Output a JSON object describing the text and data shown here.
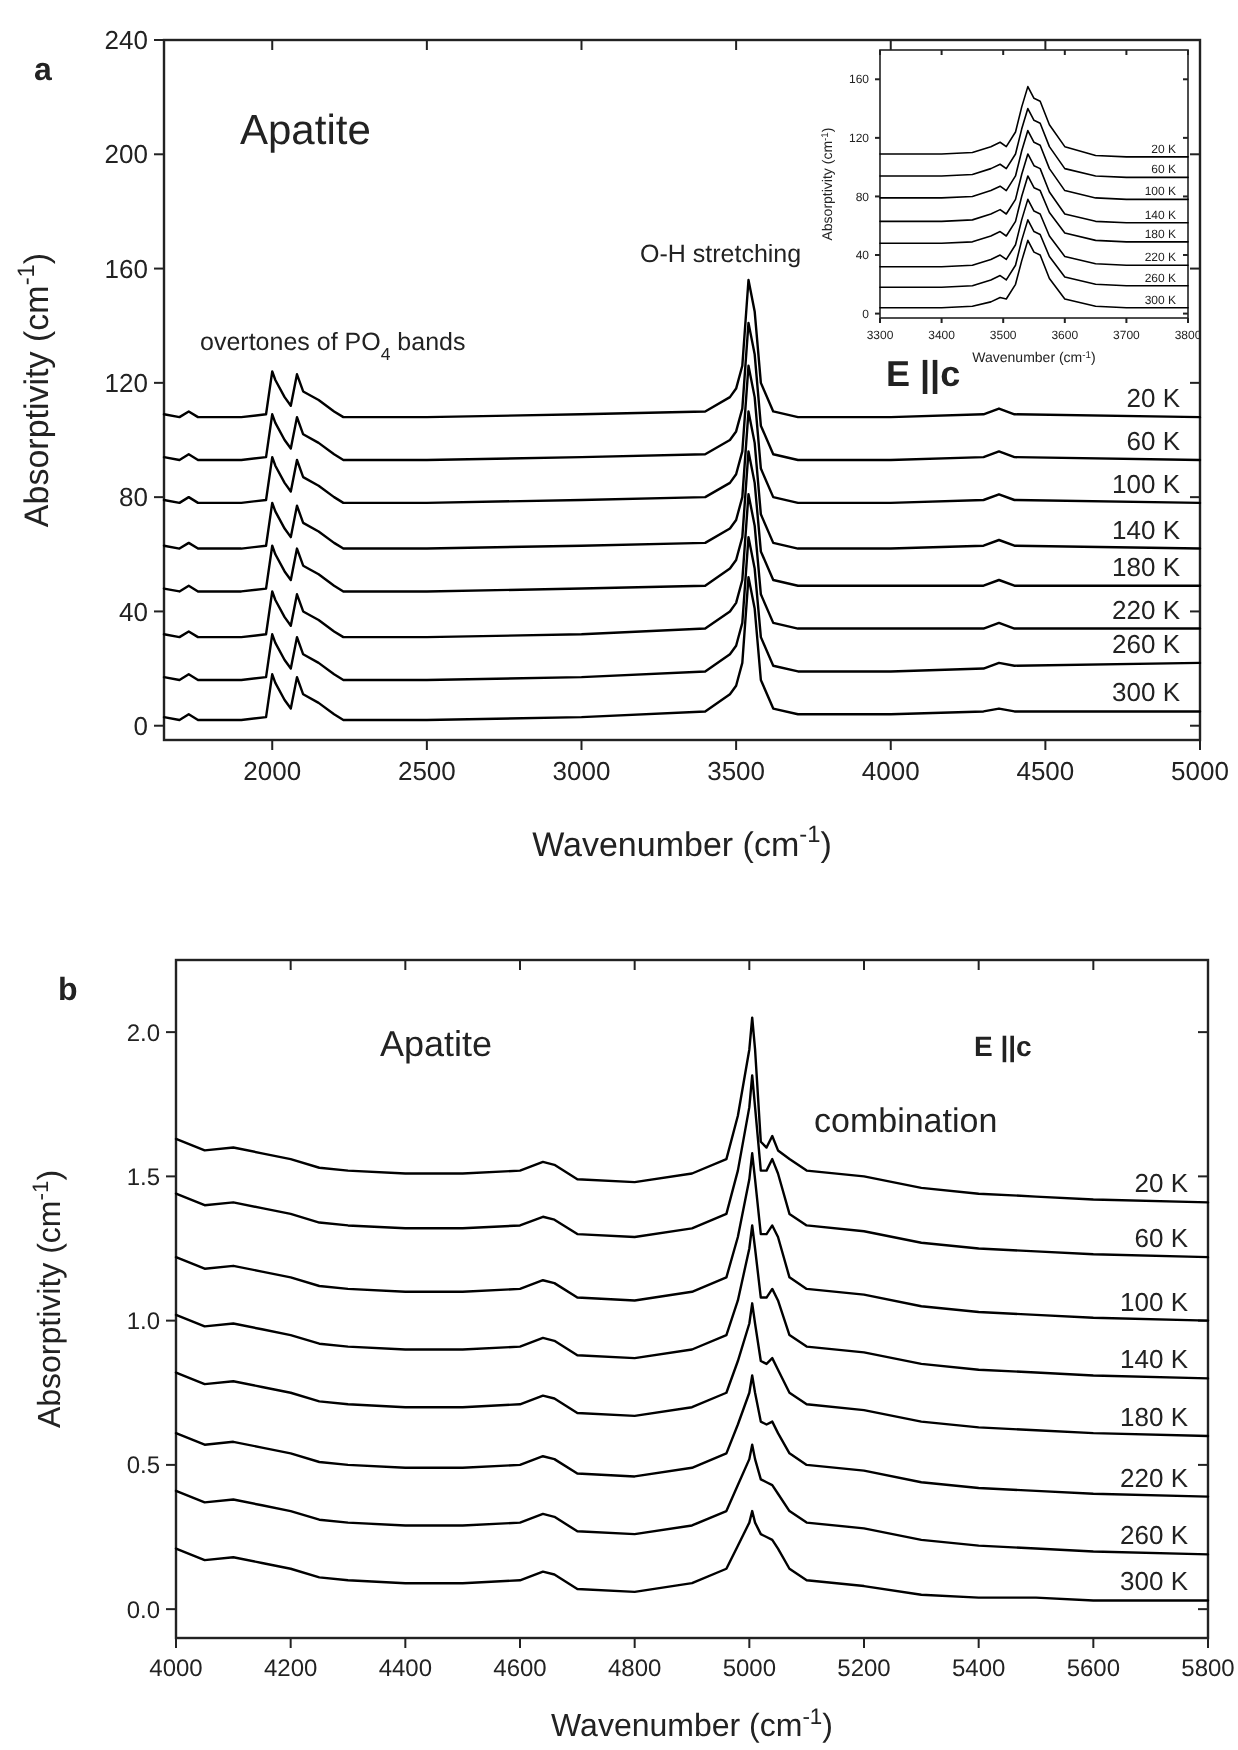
{
  "chart_data": [
    {
      "type": "line",
      "title": "a",
      "xlabel": "Wavenumber  (cm$^{-1}$)",
      "ylabel": "Absorptivity  (cm$^{-1}$)",
      "xlim": [
        1650,
        5000
      ],
      "ylim": [
        -5,
        240
      ],
      "xticks": [
        2000,
        2500,
        3000,
        3500,
        4000,
        4500,
        5000
      ],
      "yticks": [
        0,
        40,
        80,
        120,
        160,
        200,
        240
      ],
      "annotations": [
        "Apatite",
        "overtones of PO$_{4}$ bands",
        "O-H stretching",
        "E ||c"
      ],
      "x": [
        1650,
        1700,
        1730,
        1760,
        1800,
        1900,
        1980,
        2000,
        2010,
        2040,
        2060,
        2080,
        2100,
        2150,
        2200,
        2230,
        2500,
        3000,
        3400,
        3480,
        3500,
        3520,
        3540,
        3560,
        3580,
        3620,
        3700,
        4000,
        4300,
        4350,
        4400,
        5000
      ],
      "series": [
        {
          "name": "20 K",
          "color": "#000000",
          "values": [
            109,
            108,
            110,
            108,
            108,
            108,
            109,
            124,
            121,
            115,
            112,
            123,
            117,
            114,
            110,
            108,
            108,
            109,
            110,
            115,
            118,
            126,
            156,
            145,
            120,
            110,
            108,
            108,
            109,
            111,
            109,
            108
          ]
        },
        {
          "name": "60 K",
          "color": "#000000",
          "values": [
            94,
            93,
            95,
            93,
            93,
            93,
            94,
            109,
            106,
            100,
            97,
            108,
            102,
            99,
            95,
            93,
            93,
            94,
            95,
            100,
            103,
            111,
            141,
            130,
            105,
            95,
            93,
            93,
            94,
            96,
            94,
            93
          ]
        },
        {
          "name": "100 K",
          "color": "#000000",
          "values": [
            79,
            78,
            80,
            78,
            78,
            78,
            79,
            94,
            91,
            85,
            82,
            93,
            87,
            84,
            80,
            78,
            78,
            79,
            80,
            85,
            88,
            96,
            126,
            115,
            90,
            80,
            78,
            78,
            79,
            81,
            79,
            78
          ]
        },
        {
          "name": "140 K",
          "color": "#000000",
          "values": [
            63,
            62,
            64,
            62,
            62,
            62,
            63,
            78,
            75,
            69,
            66,
            77,
            71,
            68,
            64,
            62,
            62,
            63,
            64,
            69,
            72,
            80,
            110,
            99,
            74,
            64,
            62,
            62,
            63,
            65,
            63,
            62
          ]
        },
        {
          "name": "180 K",
          "color": "#000000",
          "values": [
            48,
            47,
            49,
            47,
            47,
            47,
            48,
            63,
            60,
            54,
            51,
            62,
            56,
            53,
            49,
            47,
            47,
            48,
            49,
            55,
            58,
            66,
            96,
            85,
            61,
            51,
            49,
            49,
            49,
            51,
            49,
            49
          ]
        },
        {
          "name": "220 K",
          "color": "#000000",
          "values": [
            32,
            31,
            33,
            31,
            31,
            31,
            32,
            47,
            44,
            38,
            35,
            46,
            40,
            37,
            33,
            31,
            31,
            32,
            34,
            40,
            43,
            51,
            81,
            70,
            46,
            36,
            34,
            34,
            34,
            36,
            34,
            34
          ]
        },
        {
          "name": "260 K",
          "color": "#000000",
          "values": [
            17,
            16,
            18,
            16,
            16,
            16,
            17,
            32,
            29,
            23,
            20,
            31,
            25,
            22,
            18,
            16,
            16,
            17,
            19,
            25,
            28,
            36,
            66,
            55,
            31,
            21,
            19,
            19,
            20,
            22,
            21,
            22
          ]
        },
        {
          "name": "300 K",
          "color": "#000000",
          "values": [
            3,
            2,
            4,
            2,
            2,
            2,
            3,
            18,
            15,
            9,
            6,
            17,
            11,
            8,
            4,
            2,
            2,
            3,
            5,
            11,
            14,
            22,
            52,
            41,
            16,
            6,
            4,
            4,
            5,
            6,
            5,
            5
          ]
        }
      ]
    },
    {
      "type": "line",
      "xlabel": "Wavenumber  (cm$^{-1}$)",
      "ylabel": "Absorptivity  (cm$^{-1}$)",
      "xlim": [
        3300,
        3800
      ],
      "ylim": [
        -3,
        180
      ],
      "xticks": [
        3300,
        3400,
        3500,
        3600,
        3700,
        3800
      ],
      "yticks": [
        0,
        40,
        80,
        120,
        160
      ],
      "x": [
        3300,
        3400,
        3450,
        3480,
        3495,
        3505,
        3520,
        3530,
        3540,
        3550,
        3560,
        3575,
        3600,
        3650,
        3700,
        3800
      ],
      "series": [
        {
          "name": "20 K",
          "color": "#000000",
          "values": [
            109,
            109,
            110,
            114,
            117,
            114,
            124,
            141,
            155,
            147,
            145,
            129,
            114,
            108,
            107,
            107
          ]
        },
        {
          "name": "60 K",
          "color": "#000000",
          "values": [
            94,
            94,
            95,
            99,
            102,
            99,
            109,
            126,
            140,
            132,
            130,
            114,
            99,
            94,
            93,
            93
          ]
        },
        {
          "name": "100 K",
          "color": "#000000",
          "values": [
            79,
            79,
            80,
            84,
            87,
            84,
            94,
            111,
            125,
            117,
            115,
            99,
            84,
            79,
            78,
            78
          ]
        },
        {
          "name": "140 K",
          "color": "#000000",
          "values": [
            63,
            63,
            64,
            68,
            71,
            68,
            78,
            95,
            109,
            101,
            99,
            83,
            68,
            63,
            62,
            62
          ]
        },
        {
          "name": "180 K",
          "color": "#000000",
          "values": [
            48,
            48,
            49,
            53,
            56,
            53,
            63,
            80,
            94,
            86,
            84,
            69,
            55,
            50,
            49,
            49
          ]
        },
        {
          "name": "220 K",
          "color": "#000000",
          "values": [
            32,
            32,
            33,
            37,
            40,
            37,
            47,
            64,
            78,
            70,
            68,
            53,
            39,
            34,
            33,
            33
          ]
        },
        {
          "name": "260 K",
          "color": "#000000",
          "values": [
            18,
            18,
            19,
            23,
            26,
            23,
            33,
            50,
            64,
            56,
            54,
            39,
            25,
            20,
            19,
            19
          ]
        },
        {
          "name": "300 K",
          "color": "#000000",
          "values": [
            4,
            4,
            5,
            8,
            11,
            10,
            20,
            36,
            50,
            42,
            40,
            24,
            10,
            5,
            4,
            4
          ]
        }
      ]
    },
    {
      "type": "line",
      "title": "b",
      "xlabel": "Wavenumber  (cm$^{-1}$)",
      "ylabel": "Absorptivity (cm$^{-1}$)",
      "xlim": [
        4000,
        5800
      ],
      "ylim": [
        -0.1,
        2.25
      ],
      "xticks": [
        4000,
        4200,
        4400,
        4600,
        4800,
        5000,
        5200,
        5400,
        5600,
        5800
      ],
      "yticks": [
        {
          "value": 0,
          "label": "0.0"
        },
        {
          "value": 0.5,
          "label": "0.5"
        },
        {
          "value": 1,
          "label": "1.0"
        },
        {
          "value": 1.5,
          "label": "1.5"
        },
        {
          "value": 2,
          "label": "2.0"
        }
      ],
      "annotations": [
        "Apatite",
        "E ||c",
        "combination"
      ],
      "x": [
        4000,
        4050,
        4100,
        4150,
        4200,
        4250,
        4300,
        4400,
        4500,
        4600,
        4640,
        4660,
        4700,
        4800,
        4900,
        4960,
        4980,
        5000,
        5005,
        5010,
        5020,
        5030,
        5040,
        5050,
        5070,
        5100,
        5200,
        5300,
        5400,
        5500,
        5600,
        5800
      ],
      "series": [
        {
          "name": "20 K",
          "color": "#000000",
          "values": [
            1.63,
            1.59,
            1.6,
            1.58,
            1.56,
            1.53,
            1.52,
            1.51,
            1.51,
            1.52,
            1.55,
            1.54,
            1.49,
            1.48,
            1.51,
            1.56,
            1.71,
            1.94,
            2.05,
            1.94,
            1.62,
            1.6,
            1.64,
            1.59,
            1.56,
            1.52,
            1.5,
            1.46,
            1.44,
            1.43,
            1.42,
            1.41
          ]
        },
        {
          "name": "60 K",
          "color": "#000000",
          "values": [
            1.44,
            1.4,
            1.41,
            1.39,
            1.37,
            1.34,
            1.33,
            1.32,
            1.32,
            1.33,
            1.36,
            1.35,
            1.3,
            1.29,
            1.32,
            1.37,
            1.52,
            1.74,
            1.85,
            1.74,
            1.52,
            1.52,
            1.56,
            1.51,
            1.37,
            1.33,
            1.31,
            1.27,
            1.25,
            1.24,
            1.23,
            1.22
          ]
        },
        {
          "name": "100 K",
          "color": "#000000",
          "values": [
            1.22,
            1.18,
            1.19,
            1.17,
            1.15,
            1.12,
            1.11,
            1.1,
            1.1,
            1.11,
            1.14,
            1.13,
            1.08,
            1.07,
            1.1,
            1.15,
            1.29,
            1.49,
            1.58,
            1.49,
            1.3,
            1.3,
            1.33,
            1.29,
            1.15,
            1.11,
            1.09,
            1.05,
            1.03,
            1.02,
            1.01,
            1.0
          ]
        },
        {
          "name": "140 K",
          "color": "#000000",
          "values": [
            1.02,
            0.98,
            0.99,
            0.97,
            0.95,
            0.92,
            0.91,
            0.9,
            0.9,
            0.91,
            0.94,
            0.93,
            0.88,
            0.87,
            0.9,
            0.95,
            1.07,
            1.25,
            1.33,
            1.25,
            1.08,
            1.08,
            1.11,
            1.07,
            0.95,
            0.91,
            0.89,
            0.85,
            0.83,
            0.82,
            0.81,
            0.8
          ]
        },
        {
          "name": "180 K",
          "color": "#000000",
          "values": [
            0.82,
            0.78,
            0.79,
            0.77,
            0.75,
            0.72,
            0.71,
            0.7,
            0.7,
            0.71,
            0.74,
            0.73,
            0.68,
            0.67,
            0.7,
            0.75,
            0.86,
            0.99,
            1.06,
            0.99,
            0.86,
            0.85,
            0.87,
            0.83,
            0.75,
            0.71,
            0.69,
            0.65,
            0.63,
            0.62,
            0.61,
            0.6
          ]
        },
        {
          "name": "220 K",
          "color": "#000000",
          "values": [
            0.61,
            0.57,
            0.58,
            0.56,
            0.54,
            0.51,
            0.5,
            0.49,
            0.49,
            0.5,
            0.53,
            0.52,
            0.47,
            0.46,
            0.49,
            0.54,
            0.64,
            0.75,
            0.81,
            0.75,
            0.65,
            0.64,
            0.65,
            0.61,
            0.54,
            0.5,
            0.48,
            0.44,
            0.42,
            0.41,
            0.4,
            0.39
          ]
        },
        {
          "name": "260 K",
          "color": "#000000",
          "values": [
            0.41,
            0.37,
            0.38,
            0.36,
            0.34,
            0.31,
            0.3,
            0.29,
            0.29,
            0.3,
            0.33,
            0.32,
            0.27,
            0.26,
            0.29,
            0.34,
            0.43,
            0.52,
            0.57,
            0.52,
            0.45,
            0.44,
            0.43,
            0.4,
            0.34,
            0.3,
            0.28,
            0.24,
            0.22,
            0.21,
            0.2,
            0.19
          ]
        },
        {
          "name": "300 K",
          "color": "#000000",
          "values": [
            0.21,
            0.17,
            0.18,
            0.16,
            0.14,
            0.11,
            0.1,
            0.09,
            0.09,
            0.1,
            0.13,
            0.12,
            0.07,
            0.06,
            0.09,
            0.14,
            0.22,
            0.3,
            0.34,
            0.3,
            0.26,
            0.25,
            0.24,
            0.21,
            0.14,
            0.1,
            0.08,
            0.05,
            0.04,
            0.04,
            0.03,
            0.03
          ]
        }
      ]
    }
  ]
}
